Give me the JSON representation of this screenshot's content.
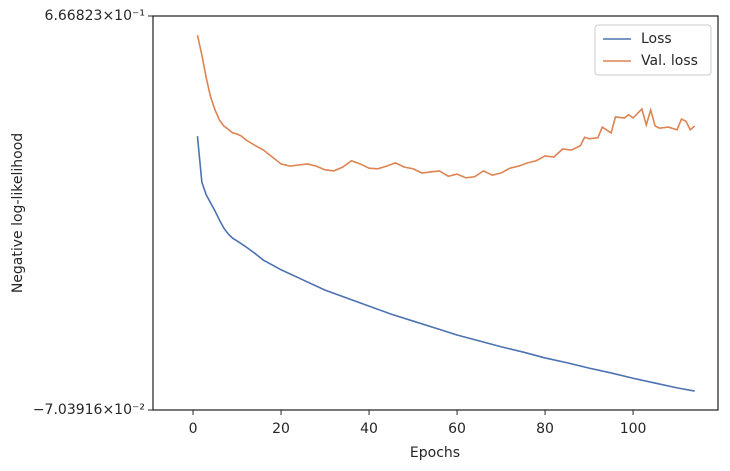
{
  "chart_data": {
    "type": "line",
    "xlabel": "Epochs",
    "ylabel": "Negative log-likelihood",
    "xlim": [
      -9.1,
      119.3
    ],
    "xticks": [
      0,
      20,
      40,
      60,
      80,
      100
    ],
    "ylim": [
      -0.0703916,
      0.666823
    ],
    "yticks": [
      {
        "value": 0.666823,
        "label": "6.66823×10⁻¹"
      },
      {
        "value": -0.0703916,
        "label": "−7.03916×10⁻²"
      }
    ],
    "legend": "upper right",
    "series": [
      {
        "name": "Loss",
        "color": "#4c72b0",
        "x": [
          1,
          2,
          3,
          4,
          5,
          6,
          7,
          8,
          9,
          10,
          12,
          14,
          16,
          18,
          20,
          25,
          30,
          35,
          40,
          45,
          50,
          55,
          60,
          65,
          70,
          75,
          80,
          85,
          90,
          95,
          100,
          105,
          110,
          114
        ],
        "values": [
          0.442,
          0.356,
          0.332,
          0.317,
          0.302,
          0.285,
          0.27,
          0.259,
          0.251,
          0.246,
          0.235,
          0.223,
          0.21,
          0.201,
          0.192,
          0.173,
          0.154,
          0.139,
          0.124,
          0.109,
          0.096,
          0.083,
          0.07,
          0.059,
          0.048,
          0.038,
          0.027,
          0.018,
          0.008,
          -0.001,
          -0.011,
          -0.02,
          -0.029,
          -0.035
        ]
      },
      {
        "name": "Val. loss",
        "color": "#dd8452",
        "x": [
          1,
          2,
          3,
          4,
          5,
          6,
          7,
          8,
          9,
          10,
          11,
          12,
          14,
          16,
          18,
          20,
          22,
          24,
          26,
          28,
          30,
          32,
          34,
          36,
          38,
          40,
          42,
          44,
          46,
          48,
          50,
          52,
          54,
          56,
          58,
          60,
          62,
          64,
          66,
          68,
          70,
          72,
          74,
          76,
          78,
          80,
          82,
          84,
          86,
          88,
          89,
          90,
          92,
          93,
          95,
          96,
          98,
          99,
          100,
          102,
          103,
          104,
          105,
          106,
          108,
          110,
          111,
          112,
          113,
          114
        ],
        "values": [
          0.631,
          0.594,
          0.551,
          0.515,
          0.491,
          0.472,
          0.461,
          0.455,
          0.448,
          0.446,
          0.442,
          0.435,
          0.425,
          0.416,
          0.403,
          0.39,
          0.386,
          0.388,
          0.39,
          0.386,
          0.379,
          0.377,
          0.384,
          0.396,
          0.39,
          0.382,
          0.381,
          0.386,
          0.392,
          0.384,
          0.381,
          0.373,
          0.375,
          0.377,
          0.367,
          0.371,
          0.364,
          0.366,
          0.377,
          0.369,
          0.373,
          0.382,
          0.386,
          0.392,
          0.396,
          0.405,
          0.403,
          0.418,
          0.416,
          0.424,
          0.44,
          0.437,
          0.439,
          0.459,
          0.448,
          0.478,
          0.476,
          0.482,
          0.476,
          0.493,
          0.463,
          0.491,
          0.461,
          0.457,
          0.459,
          0.454,
          0.474,
          0.47,
          0.454,
          0.461
        ]
      }
    ]
  }
}
